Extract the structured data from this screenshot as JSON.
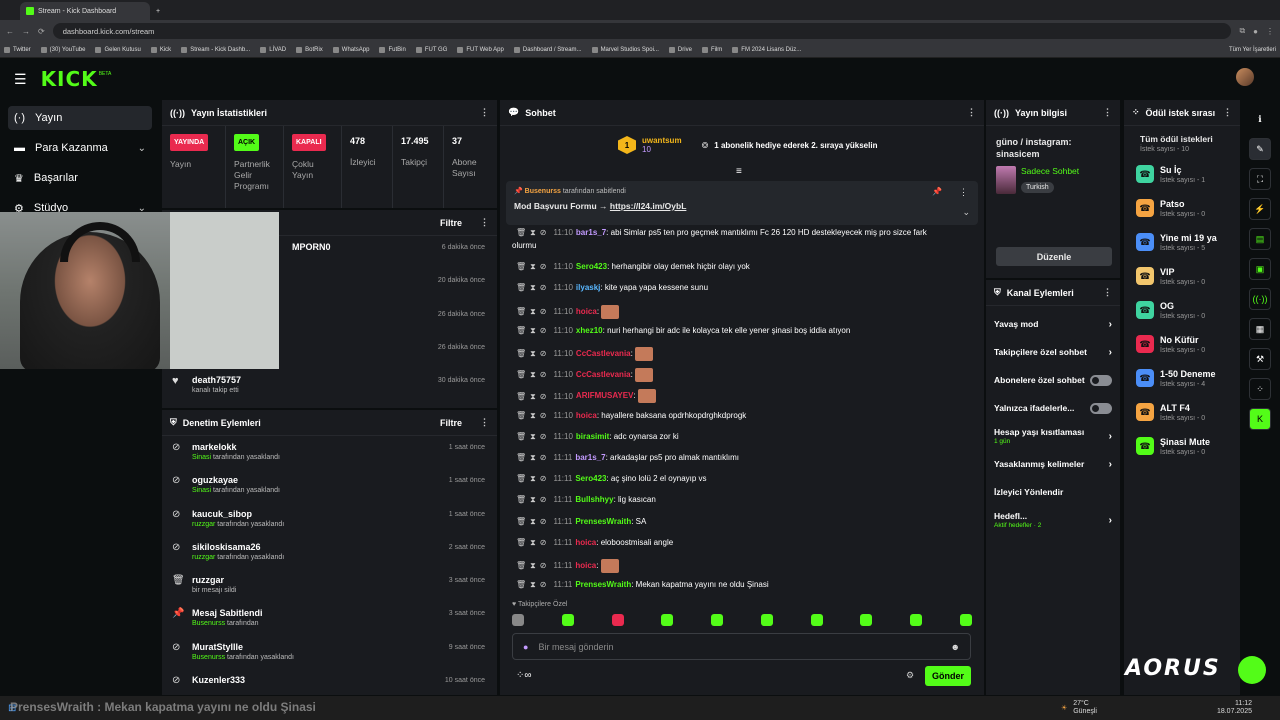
{
  "browser": {
    "tabs": [
      {
        "title": "Stream - Kick Dashboard",
        "active": true
      },
      {
        "title": "+",
        "active": false
      }
    ],
    "url": "dashboard.kick.com/stream",
    "bookmarks": [
      "Twitter",
      "(30) YouTube",
      "Gelen Kutusu",
      "Kick",
      "Stream - Kick Dashb...",
      "LİVAD",
      "BotRix",
      "WhatsApp",
      "FutBin",
      "FUT GG",
      "FUT Web App",
      "Dashboard / Stream...",
      "Marvel Studios Spoi...",
      "Drive",
      "Film",
      "FM 2024 Lisans Düz..."
    ],
    "bookmarks_all": "Tüm Yer İşaretleri"
  },
  "sidebar": {
    "items": [
      {
        "label": "Yayın",
        "icon": "broadcast-icon"
      },
      {
        "label": "Para Kazanma",
        "icon": "money-icon"
      },
      {
        "label": "Başarılar",
        "icon": "trophy-icon"
      },
      {
        "label": "Stüdyo",
        "icon": "studio-icon"
      }
    ]
  },
  "stats": {
    "title": "Yayın İstatistikleri",
    "items": [
      {
        "badge": "YAYINDA",
        "badge_color": "#ea2a4f",
        "label": "Yayın"
      },
      {
        "badge": "AÇIK",
        "badge_color": "#53fc18",
        "label": "Partnerlik Gelir Programı"
      },
      {
        "badge": "KAPALI",
        "badge_color": "#ea2a4f",
        "label": "Çoklu Yayın"
      },
      {
        "num": "478",
        "label": "İzleyici"
      },
      {
        "num": "17.495",
        "label": "Takipçi"
      },
      {
        "num": "37",
        "label": "Abone Sayısı"
      }
    ]
  },
  "activity": {
    "filter": "Filtre",
    "rows": [
      {
        "name": "MPORN0",
        "sub": "",
        "time": "6 dakika önce"
      },
      {
        "name": "",
        "sub": "",
        "time": "20 dakika önce"
      },
      {
        "name": "",
        "sub": "",
        "time": "26 dakika önce"
      },
      {
        "name": "",
        "sub": "",
        "time": "26 dakika önce"
      },
      {
        "name": "death75757",
        "sub": "kanalı takip etti",
        "time": "30 dakika önce"
      }
    ]
  },
  "moderation": {
    "title": "Denetim Eylemleri",
    "filter": "Filtre",
    "rows": [
      {
        "name": "markelokk",
        "who": "Sinasi",
        "sub": "tarafından yasaklandı",
        "time": "1 saat önce"
      },
      {
        "name": "oguzkayae",
        "who": "Sinasi",
        "sub": "tarafından yasaklandı",
        "time": "1 saat önce"
      },
      {
        "name": "kaucuk_sibop",
        "who": "ruzzgar",
        "sub": "tarafından yasaklandı",
        "time": "1 saat önce"
      },
      {
        "name": "sikiloskisama26",
        "who": "ruzzgar",
        "sub": "tarafından yasaklandı",
        "time": "2 saat önce"
      },
      {
        "name": "ruzzgar",
        "who": "",
        "sub": "bir mesajı sildi",
        "time": "3 saat önce"
      },
      {
        "name": "Mesaj Sabitlendi",
        "who": "Busenurss",
        "sub": "tarafından",
        "time": "3 saat önce"
      },
      {
        "name": "MuratStyllle",
        "who": "Busenurss",
        "sub": "tarafından yasaklandı",
        "time": "9 saat önce"
      },
      {
        "name": "Kuzenler333",
        "who": "",
        "sub": "",
        "time": "10 saat önce"
      }
    ]
  },
  "chat": {
    "title": "Sohbet",
    "gift_user": "uwantsum",
    "gift_count": "10",
    "gift_text": "1 abonelik hediye ederek 2. sıraya yükselin",
    "pinned_by": "Busenurss",
    "pinned_by_suffix": "tarafından sabitlendi",
    "pinned_text": "Mod Başvuru Formu → ",
    "pinned_link": "https://l24.im/OybL",
    "messages": [
      {
        "time": "11:10",
        "user": "bar1s_7",
        "color": "#c39bff",
        "text": "abi Simlar ps5 ten pro geçmek mantıklımı Fc 26 120 HD destekleyecek miş pro sizce fark"
      },
      {
        "time": "",
        "user": "",
        "color": "#fff",
        "text": "olurmu"
      },
      {
        "time": "11:10",
        "user": "Sero423",
        "color": "#53fc18",
        "text": "herhangibir olay demek hiçbir olayı yok"
      },
      {
        "time": "11:10",
        "user": "ilyaskj",
        "color": "#59b7ff",
        "text": "kite yapa yapa kessene sunu"
      },
      {
        "time": "11:10",
        "user": "hoica",
        "color": "#ea2a4f",
        "text": ""
      },
      {
        "time": "11:10",
        "user": "xhez10",
        "color": "#53fc18",
        "text": "nuri herhangi bir adc ile kolayca tek elle yener şinasi boş iddia atıyon"
      },
      {
        "time": "11:10",
        "user": "CcCastlevania",
        "color": "#ea2a4f",
        "text": ""
      },
      {
        "time": "11:10",
        "user": "CcCastlevania",
        "color": "#ea2a4f",
        "text": ""
      },
      {
        "time": "11:10",
        "user": "ARIFMUSAYEV",
        "color": "#ea2a4f",
        "text": ""
      },
      {
        "time": "11:10",
        "user": "hoica",
        "color": "#ea2a4f",
        "text": "hayallere baksana opdrhkopdrghkdprogk"
      },
      {
        "time": "11:10",
        "user": "birasimit",
        "color": "#53fc18",
        "text": "adc oynarsa zor ki"
      },
      {
        "time": "11:11",
        "user": "bar1s_7",
        "color": "#c39bff",
        "text": "arkadaşlar ps5 pro almak mantıklımı"
      },
      {
        "time": "11:11",
        "user": "Sero423",
        "color": "#53fc18",
        "text": "aç şino lolü 2 el oynayıp vs"
      },
      {
        "time": "11:11",
        "user": "Bullshhyy",
        "color": "#53fc18",
        "text": "lig kasıcan"
      },
      {
        "time": "11:11",
        "user": "PrensesWraith",
        "color": "#53fc18",
        "text": "SA"
      },
      {
        "time": "11:11",
        "user": "hoica",
        "color": "#ea2a4f",
        "text": "eloboostmisali angle"
      },
      {
        "time": "11:11",
        "user": "hoica",
        "color": "#ea2a4f",
        "text": ""
      },
      {
        "time": "11:11",
        "user": "PrensesWraith",
        "color": "#53fc18",
        "text": "Mekan kapatma yayını ne oldu Şinasi"
      }
    ],
    "followers_only": "Takipçilere Özel",
    "input_placeholder": "Bir mesaj gönderin",
    "send_label": "Gönder"
  },
  "stream_info": {
    "title": "Yayın bilgisi",
    "desc": "güno / instagram: sinasicem",
    "category": "Sadece Sohbet",
    "language": "Turkish",
    "edit_label": "Düzenle"
  },
  "channel_actions": {
    "title": "Kanal Eylemleri",
    "items": [
      {
        "label": "Yavaş mod",
        "type": "arrow"
      },
      {
        "label": "Takipçilere özel sohbet",
        "type": "arrow"
      },
      {
        "label": "Abonelere özel sohbet",
        "type": "toggle"
      },
      {
        "label": "Yalnızca ifadelerle...",
        "type": "toggle"
      },
      {
        "label": "Hesap yaşı kısıtlaması",
        "sub": "1 gün",
        "type": "arrow"
      },
      {
        "label": "Yasaklanmış kelimeler",
        "type": "arrow"
      },
      {
        "label": "İzleyici Yönlendir",
        "type": "none"
      },
      {
        "label": "Hedefl...",
        "sub": "Aktif hedefler · 2",
        "type": "arrow"
      }
    ]
  },
  "rewards": {
    "title": "Ödül istek sırası",
    "all_label": "Tüm ödül istekleri",
    "all_count": "İstek sayısı - 10",
    "items": [
      {
        "name": "Su İç",
        "count": "İstek sayısı - 1",
        "color": "#3fd4a0"
      },
      {
        "name": "Patso",
        "count": "İstek sayısı - 0",
        "color": "#f5a442"
      },
      {
        "name": "Yine mi 19 ya",
        "count": "İstek sayısı - 5",
        "color": "#4b8ef7"
      },
      {
        "name": "VIP",
        "count": "İstek sayısı - 0",
        "color": "#f2c66d"
      },
      {
        "name": "OG",
        "count": "İstek sayısı - 0",
        "color": "#3fd4a0"
      },
      {
        "name": "No Küfür",
        "count": "İstek sayısı - 0",
        "color": "#ea2a4f"
      },
      {
        "name": "1-50 Deneme",
        "count": "İstek sayısı - 4",
        "color": "#4b8ef7"
      },
      {
        "name": "ALT F4",
        "count": "İstek sayısı - 0",
        "color": "#f5a442"
      },
      {
        "name": "Şinasi Mute",
        "count": "İstek sayısı - 0",
        "color": "#53fc18"
      }
    ]
  },
  "taskbar": {
    "weather": "27°C",
    "weather_sub": "Güneşli",
    "time": "11:12",
    "date": "18.07.2025"
  },
  "overlay": {
    "text": "PrensesWraith : Mekan kapatma yayını ne oldu Şinasi",
    "brand": "AORUS"
  }
}
